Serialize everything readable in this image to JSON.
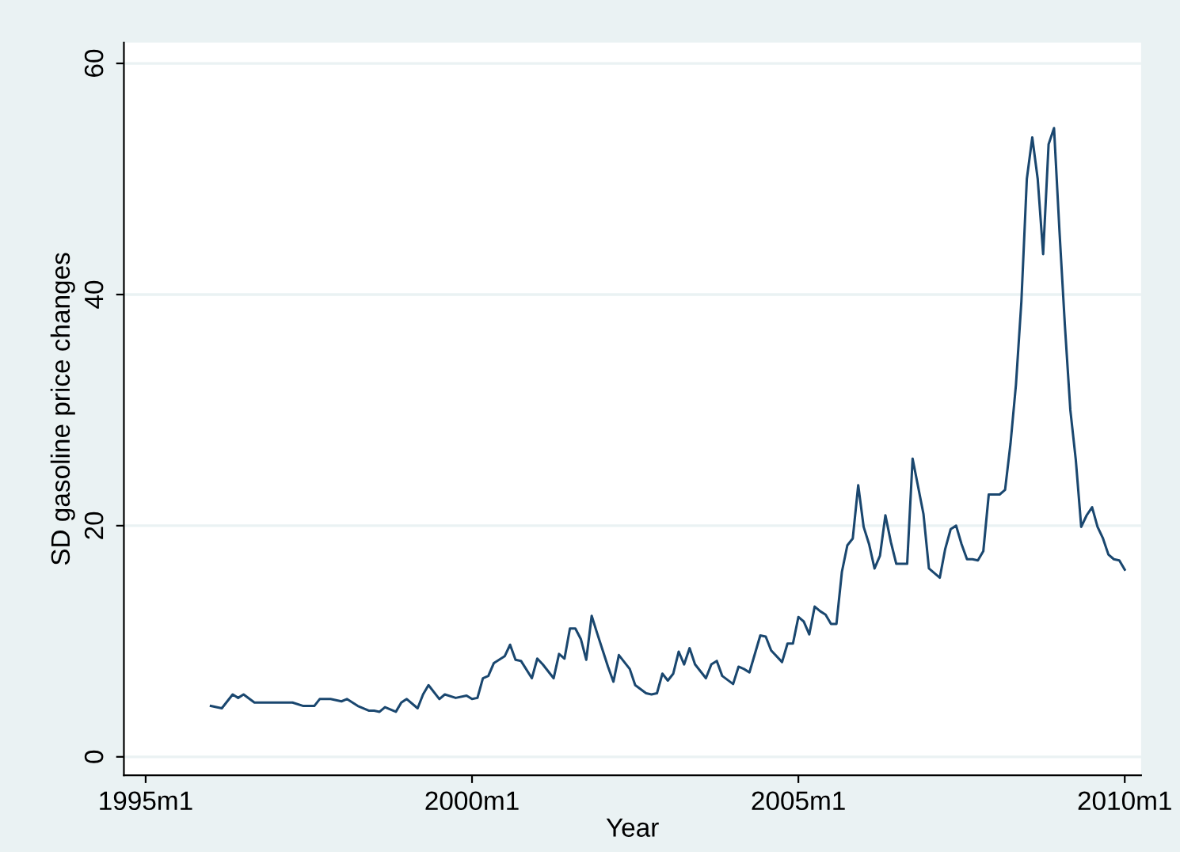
{
  "chart_data": {
    "type": "line",
    "xlabel": "Year",
    "ylabel": "SD gasoline price changes",
    "xlim": [
      "1994-09",
      "2010-04"
    ],
    "ylim": [
      -1.6,
      61.8
    ],
    "xticks": [
      {
        "value": "1995-01",
        "label": "1995m1"
      },
      {
        "value": "2000-01",
        "label": "2000m1"
      },
      {
        "value": "2005-01",
        "label": "2005m1"
      },
      {
        "value": "2010-01",
        "label": "2010m1"
      }
    ],
    "yticks": [
      0,
      20,
      40,
      60
    ],
    "grid": "y",
    "marker": "none",
    "line_style": "solid",
    "series": [
      {
        "color": "#1a476f",
        "x": [
          "1996-01",
          "1996-03",
          "1996-05",
          "1996-06",
          "1996-07",
          "1996-09",
          "1997-04",
          "1997-06",
          "1997-08",
          "1997-09",
          "1997-11",
          "1998-01",
          "1998-02",
          "1998-04",
          "1998-06",
          "1998-07",
          "1998-08",
          "1998-09",
          "1998-11",
          "1998-12",
          "1999-01",
          "1999-03",
          "1999-04",
          "1999-05",
          "1999-07",
          "1999-08",
          "1999-10",
          "1999-12",
          "2000-01",
          "2000-02",
          "2000-03",
          "2000-04",
          "2000-05",
          "2000-07",
          "2000-08",
          "2000-09",
          "2000-10",
          "2000-12",
          "2001-01",
          "2001-02",
          "2001-04",
          "2001-05",
          "2001-06",
          "2001-07",
          "2001-08",
          "2001-09",
          "2001-10",
          "2001-11",
          "2001-12",
          "2002-02",
          "2002-03",
          "2002-04",
          "2002-06",
          "2002-07",
          "2002-09",
          "2002-10",
          "2002-11",
          "2002-12",
          "2003-01",
          "2003-02",
          "2003-03",
          "2003-04",
          "2003-05",
          "2003-06",
          "2003-08",
          "2003-09",
          "2003-10",
          "2003-11",
          "2004-01",
          "2004-02",
          "2004-03",
          "2004-04",
          "2004-06",
          "2004-07",
          "2004-08",
          "2004-10",
          "2004-11",
          "2004-12",
          "2005-01",
          "2005-02",
          "2005-03",
          "2005-04",
          "2005-05",
          "2005-06",
          "2005-07",
          "2005-08",
          "2005-09",
          "2005-10",
          "2005-11",
          "2005-12",
          "2006-01",
          "2006-02",
          "2006-03",
          "2006-04",
          "2006-05",
          "2006-06",
          "2006-07",
          "2006-09",
          "2006-10",
          "2006-12",
          "2007-01",
          "2007-03",
          "2007-04",
          "2007-05",
          "2007-06",
          "2007-07",
          "2007-08",
          "2007-09",
          "2007-10",
          "2007-11",
          "2007-12",
          "2008-02",
          "2008-03",
          "2008-04",
          "2008-05",
          "2008-06",
          "2008-07",
          "2008-08",
          "2008-09",
          "2008-10",
          "2008-11",
          "2008-12",
          "2009-01",
          "2009-02",
          "2009-03",
          "2009-04",
          "2009-05",
          "2009-06",
          "2009-07",
          "2009-08",
          "2009-09",
          "2009-10",
          "2009-11",
          "2009-12",
          "2010-01"
        ],
        "values": [
          4.4,
          4.2,
          5.4,
          5.1,
          5.4,
          4.7,
          4.7,
          4.4,
          4.4,
          5.0,
          5.0,
          4.8,
          5.0,
          4.4,
          4.0,
          4.0,
          3.9,
          4.3,
          3.9,
          4.7,
          5.0,
          4.2,
          5.4,
          6.2,
          5.0,
          5.4,
          5.1,
          5.3,
          5.0,
          5.1,
          6.8,
          7.0,
          8.1,
          8.7,
          9.7,
          8.4,
          8.3,
          6.8,
          8.5,
          8.0,
          6.8,
          8.9,
          8.5,
          11.1,
          11.1,
          10.2,
          8.4,
          12.2,
          10.7,
          7.8,
          6.5,
          8.8,
          7.6,
          6.2,
          5.5,
          5.4,
          5.5,
          7.2,
          6.6,
          7.2,
          9.1,
          8.0,
          9.4,
          8.0,
          6.8,
          8.0,
          8.3,
          7.0,
          6.3,
          7.8,
          7.6,
          7.3,
          10.5,
          10.4,
          9.2,
          8.2,
          9.8,
          9.8,
          12.1,
          11.7,
          10.6,
          13.0,
          12.6,
          12.3,
          11.5,
          11.5,
          16.0,
          18.3,
          18.9,
          23.5,
          19.9,
          18.4,
          16.3,
          17.4,
          20.9,
          18.6,
          16.7,
          16.7,
          25.8,
          21.0,
          16.3,
          15.5,
          18.0,
          19.7,
          20.0,
          18.4,
          17.1,
          17.1,
          17.0,
          17.8,
          22.7,
          22.7,
          23.1,
          27.1,
          32.2,
          39.4,
          50.0,
          53.6,
          50.0,
          43.5,
          53.0,
          54.4,
          45.5,
          37.3,
          30.0,
          25.7,
          19.9,
          20.9,
          21.6,
          19.9,
          18.9,
          17.5,
          17.1,
          17.0,
          16.2
        ]
      }
    ]
  }
}
